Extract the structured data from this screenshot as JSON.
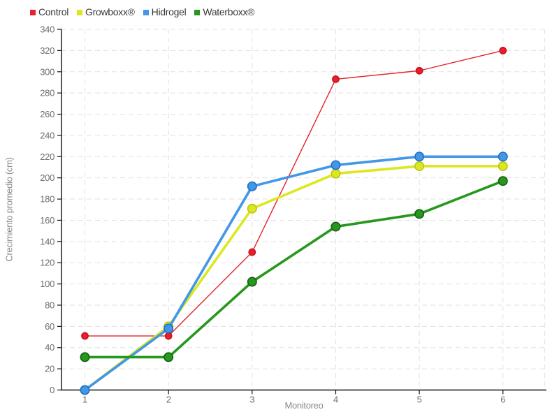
{
  "legend": {
    "items": [
      {
        "label": "Control",
        "color": "#e6212b"
      },
      {
        "label": "Growboxx®",
        "color": "#dce81f"
      },
      {
        "label": "Hidrogel",
        "color": "#4297e8"
      },
      {
        "label": "Waterboxx®",
        "color": "#27971d"
      }
    ]
  },
  "chart_data": {
    "type": "line",
    "title": "",
    "xlabel": "Monitoreo",
    "ylabel": "Crecimiento promedio (cm)",
    "x": [
      1,
      2,
      3,
      4,
      5,
      6
    ],
    "series": [
      {
        "name": "Control",
        "color": "#e6212b",
        "marker_stroke": "#c9101d",
        "line_width": 1.4,
        "marker_radius": 4.6,
        "values": [
          51,
          51,
          130,
          293,
          301,
          320
        ]
      },
      {
        "name": "Growboxx®",
        "color": "#dce81f",
        "marker_stroke": "#b8c410",
        "line_width": 3.6,
        "marker_radius": 6.2,
        "values": [
          0,
          60,
          171,
          204,
          211,
          211
        ]
      },
      {
        "name": "Hidrogel",
        "color": "#4297e8",
        "marker_stroke": "#1e6fc2",
        "line_width": 3.6,
        "marker_radius": 6.2,
        "values": [
          0,
          58,
          192,
          212,
          220,
          220
        ]
      },
      {
        "name": "Waterboxx®",
        "color": "#27971d",
        "marker_stroke": "#135f14",
        "line_width": 3.6,
        "marker_radius": 6.2,
        "values": [
          31,
          31,
          102,
          154,
          166,
          197
        ]
      }
    ],
    "xlim": [
      0.72,
      6.52
    ],
    "ylim": [
      0,
      340
    ],
    "y_tick_step": 20,
    "x_gridlines": [
      1,
      2,
      3,
      4,
      5,
      6,
      6.5
    ],
    "grid": "dashed",
    "grid_color": "#e1e1e1",
    "axis_color": "#111111",
    "legend_position": "top-left"
  }
}
